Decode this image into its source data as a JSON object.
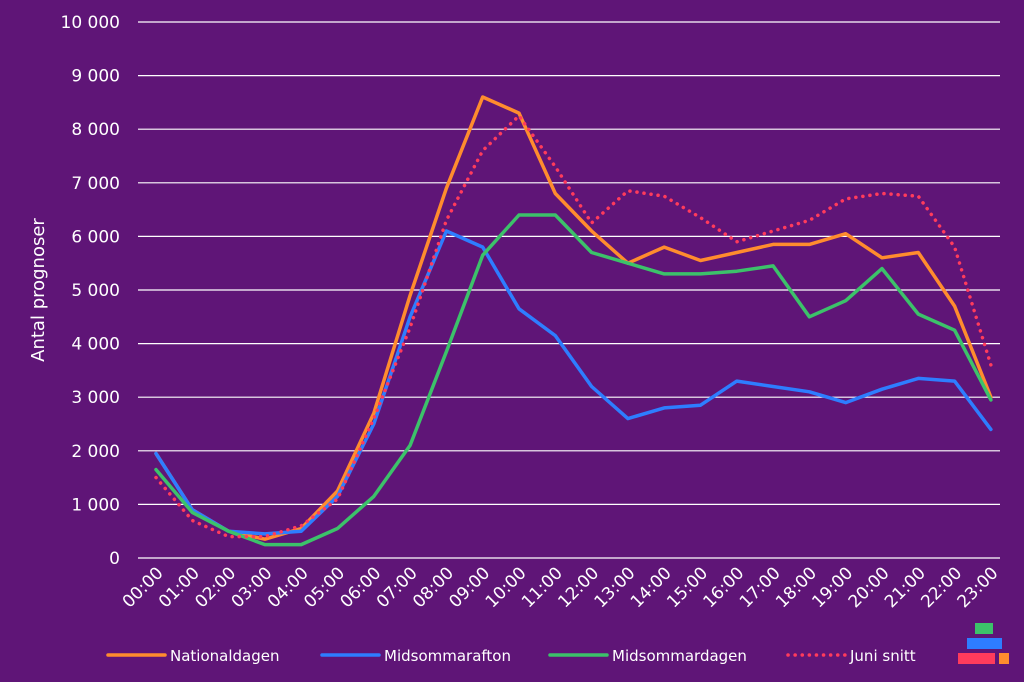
{
  "chart_data": {
    "type": "line",
    "title": "",
    "xlabel": "",
    "ylabel": "Antal prognoser",
    "ylim": [
      0,
      10000
    ],
    "yticks": [
      0,
      1000,
      2000,
      3000,
      4000,
      5000,
      6000,
      7000,
      8000,
      9000,
      10000
    ],
    "ytick_labels": [
      "0",
      "1 000",
      "2 000",
      "3 000",
      "4 000",
      "5 000",
      "6 000",
      "7 000",
      "8 000",
      "9 000",
      "10 000"
    ],
    "grid": true,
    "legend_position": "bottom",
    "categories": [
      "00:00",
      "01:00",
      "02:00",
      "03:00",
      "04:00",
      "05:00",
      "06:00",
      "07:00",
      "08:00",
      "09:00",
      "10:00",
      "11:00",
      "12:00",
      "13:00",
      "14:00",
      "15:00",
      "16:00",
      "17:00",
      "18:00",
      "19:00",
      "20:00",
      "21:00",
      "22:00",
      "23:00"
    ],
    "series": [
      {
        "name": "Nationaldagen",
        "color": "#ff8c2e",
        "style": "solid",
        "values": [
          1950,
          900,
          500,
          350,
          550,
          1250,
          2700,
          4900,
          6900,
          8600,
          8300,
          6800,
          6100,
          5500,
          5800,
          5550,
          5700,
          5850,
          5850,
          6050,
          5600,
          5700,
          4700,
          3000
        ]
      },
      {
        "name": "Midsommarafton",
        "color": "#2e7dff",
        "style": "solid",
        "values": [
          1950,
          900,
          500,
          450,
          500,
          1150,
          2500,
          4500,
          6100,
          5800,
          4650,
          4150,
          3200,
          2600,
          2800,
          2850,
          3300,
          3200,
          3100,
          2900,
          3150,
          3350,
          3300,
          2400
        ]
      },
      {
        "name": "Midsommardagen",
        "color": "#3cc26a",
        "style": "solid",
        "values": [
          1650,
          850,
          500,
          250,
          250,
          550,
          1150,
          2100,
          3850,
          5650,
          6400,
          6400,
          5700,
          5500,
          5300,
          5300,
          5350,
          5450,
          4500,
          4800,
          5400,
          4550,
          4250,
          2950
        ]
      },
      {
        "name": "Juni snitt",
        "color": "#ff3b5c",
        "style": "dotted",
        "values": [
          1500,
          700,
          400,
          400,
          600,
          1100,
          2600,
          4300,
          6300,
          7600,
          8250,
          7300,
          6250,
          6850,
          6750,
          6350,
          5900,
          6100,
          6300,
          6700,
          6800,
          6750,
          5800,
          3600
        ]
      }
    ]
  },
  "logo": {
    "colors": [
      "#3cc26a",
      "#2e7dff",
      "#ff3b5c",
      "#ff8c2e"
    ]
  }
}
